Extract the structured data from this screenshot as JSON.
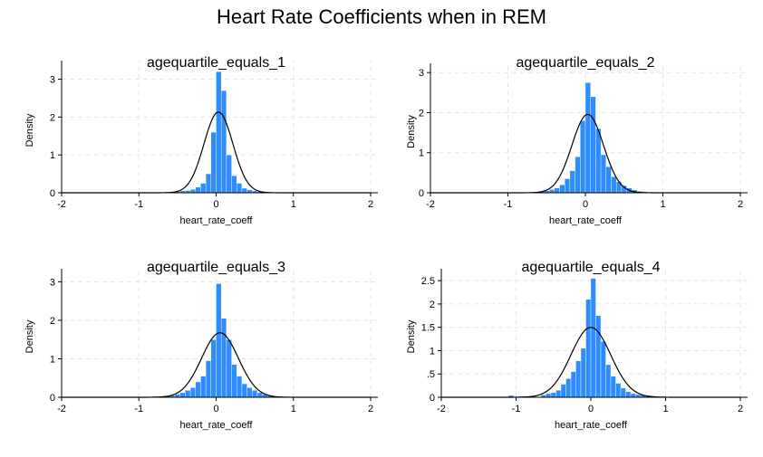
{
  "figure": {
    "title": "Heart Rate Coefficients when in REM"
  },
  "colors": {
    "bar": "#2f8cff",
    "curve": "#000000",
    "grid": "#e6e6e6"
  },
  "chart_data": [
    {
      "type": "bar",
      "title": "agequartile_equals_1",
      "xlabel": "heart_rate_coeff",
      "ylabel": "Density",
      "xlim": [
        -2,
        2
      ],
      "ylim": [
        0,
        3.3
      ],
      "xticks": [
        "-2",
        "-1",
        "0",
        "1",
        "2"
      ],
      "yticks": [
        0,
        1,
        2,
        3
      ],
      "ytick_labels": [
        "0",
        "1",
        "2",
        "3"
      ],
      "grid": true,
      "bin_width": 0.0667,
      "bins": [
        {
          "x": -0.7,
          "y": 0.02
        },
        {
          "x": -0.633,
          "y": 0.02
        },
        {
          "x": -0.567,
          "y": 0.03
        },
        {
          "x": -0.5,
          "y": 0.03
        },
        {
          "x": -0.433,
          "y": 0.05
        },
        {
          "x": -0.367,
          "y": 0.06
        },
        {
          "x": -0.3,
          "y": 0.09
        },
        {
          "x": -0.233,
          "y": 0.15
        },
        {
          "x": -0.167,
          "y": 0.25
        },
        {
          "x": -0.1,
          "y": 0.5
        },
        {
          "x": -0.033,
          "y": 1.6
        },
        {
          "x": 0.033,
          "y": 3.2
        },
        {
          "x": 0.1,
          "y": 2.7
        },
        {
          "x": 0.167,
          "y": 1.0
        },
        {
          "x": 0.233,
          "y": 0.45
        },
        {
          "x": 0.3,
          "y": 0.25
        },
        {
          "x": 0.367,
          "y": 0.12
        },
        {
          "x": 0.433,
          "y": 0.08
        },
        {
          "x": 0.5,
          "y": 0.05
        },
        {
          "x": 0.567,
          "y": 0.03
        },
        {
          "x": 0.633,
          "y": 0.03
        },
        {
          "x": 0.7,
          "y": 0.02
        },
        {
          "x": 0.767,
          "y": 0.01
        }
      ],
      "normal_curve": {
        "mean": 0.03,
        "sd": 0.187,
        "xrange": [
          -2,
          2
        ]
      }
    },
    {
      "type": "bar",
      "title": "agequartile_equals_2",
      "xlabel": "heart_rate_coeff",
      "ylabel": "Density",
      "xlim": [
        -2,
        2
      ],
      "ylim": [
        0,
        3.05
      ],
      "xticks": [
        "-2",
        "-1",
        "0",
        "1",
        "2"
      ],
      "yticks": [
        0,
        1,
        2,
        3
      ],
      "ytick_labels": [
        "0",
        "1",
        "2",
        "3"
      ],
      "grid": true,
      "bin_width": 0.0667,
      "bins": [
        {
          "x": -0.567,
          "y": 0.03
        },
        {
          "x": -0.5,
          "y": 0.05
        },
        {
          "x": -0.433,
          "y": 0.08
        },
        {
          "x": -0.367,
          "y": 0.12
        },
        {
          "x": -0.3,
          "y": 0.2
        },
        {
          "x": -0.233,
          "y": 0.35
        },
        {
          "x": -0.167,
          "y": 0.55
        },
        {
          "x": -0.1,
          "y": 0.9
        },
        {
          "x": -0.033,
          "y": 1.8
        },
        {
          "x": 0.033,
          "y": 2.75
        },
        {
          "x": 0.1,
          "y": 2.4
        },
        {
          "x": 0.167,
          "y": 1.6
        },
        {
          "x": 0.233,
          "y": 0.95
        },
        {
          "x": 0.3,
          "y": 0.65
        },
        {
          "x": 0.367,
          "y": 0.4
        },
        {
          "x": 0.433,
          "y": 0.28
        },
        {
          "x": 0.5,
          "y": 0.18
        },
        {
          "x": 0.567,
          "y": 0.12
        },
        {
          "x": 0.633,
          "y": 0.07
        },
        {
          "x": 0.7,
          "y": 0.04
        },
        {
          "x": 0.767,
          "y": 0.03
        },
        {
          "x": 0.833,
          "y": 0.02
        }
      ],
      "normal_curve": {
        "mean": 0.03,
        "sd": 0.204,
        "xrange": [
          -2,
          2
        ]
      }
    },
    {
      "type": "bar",
      "title": "agequartile_equals_3",
      "xlabel": "heart_rate_coeff",
      "ylabel": "Density",
      "xlim": [
        -2,
        2
      ],
      "ylim": [
        0,
        3.15
      ],
      "xticks": [
        "-2",
        "-1",
        "0",
        "1",
        "2"
      ],
      "yticks": [
        0,
        1,
        2,
        3
      ],
      "ytick_labels": [
        "0",
        "1",
        "2",
        "3"
      ],
      "grid": true,
      "bin_width": 0.0667,
      "bins": [
        {
          "x": -0.633,
          "y": 0.03
        },
        {
          "x": -0.567,
          "y": 0.05
        },
        {
          "x": -0.5,
          "y": 0.08
        },
        {
          "x": -0.433,
          "y": 0.12
        },
        {
          "x": -0.367,
          "y": 0.18
        },
        {
          "x": -0.3,
          "y": 0.25
        },
        {
          "x": -0.233,
          "y": 0.4
        },
        {
          "x": -0.167,
          "y": 0.55
        },
        {
          "x": -0.1,
          "y": 0.95
        },
        {
          "x": -0.033,
          "y": 1.5
        },
        {
          "x": 0.033,
          "y": 2.95
        },
        {
          "x": 0.1,
          "y": 2.05
        },
        {
          "x": 0.167,
          "y": 1.5
        },
        {
          "x": 0.233,
          "y": 0.85
        },
        {
          "x": 0.3,
          "y": 0.55
        },
        {
          "x": 0.367,
          "y": 0.35
        },
        {
          "x": 0.433,
          "y": 0.25
        },
        {
          "x": 0.5,
          "y": 0.18
        },
        {
          "x": 0.567,
          "y": 0.12
        },
        {
          "x": 0.633,
          "y": 0.08
        },
        {
          "x": 0.7,
          "y": 0.05
        },
        {
          "x": 0.767,
          "y": 0.03
        },
        {
          "x": 0.833,
          "y": 0.02
        },
        {
          "x": 0.9,
          "y": 0.02
        },
        {
          "x": 0.967,
          "y": 0.02
        }
      ],
      "normal_curve": {
        "mean": 0.05,
        "sd": 0.238,
        "xrange": [
          -2,
          2
        ]
      }
    },
    {
      "type": "bar",
      "title": "agequartile_equals_4",
      "xlabel": "heart_rate_coeff",
      "ylabel": "Density",
      "xlim": [
        -2,
        2
      ],
      "ylim": [
        0,
        2.6
      ],
      "xticks": [
        "-2",
        "-1",
        "0",
        "1",
        "2"
      ],
      "yticks": [
        0,
        0.5,
        1,
        1.5,
        2,
        2.5
      ],
      "ytick_labels": [
        "0",
        ".5",
        "1",
        "1.5",
        "2",
        "2.5"
      ],
      "grid": true,
      "bin_width": 0.0667,
      "bins": [
        {
          "x": -1.067,
          "y": 0.04
        },
        {
          "x": -0.933,
          "y": 0.02
        },
        {
          "x": -0.767,
          "y": 0.02
        },
        {
          "x": -0.633,
          "y": 0.05
        },
        {
          "x": -0.567,
          "y": 0.08
        },
        {
          "x": -0.5,
          "y": 0.1
        },
        {
          "x": -0.433,
          "y": 0.15
        },
        {
          "x": -0.367,
          "y": 0.28
        },
        {
          "x": -0.3,
          "y": 0.4
        },
        {
          "x": -0.233,
          "y": 0.55
        },
        {
          "x": -0.167,
          "y": 0.78
        },
        {
          "x": -0.1,
          "y": 1.05
        },
        {
          "x": -0.033,
          "y": 2.1
        },
        {
          "x": 0.033,
          "y": 2.55
        },
        {
          "x": 0.1,
          "y": 1.75
        },
        {
          "x": 0.167,
          "y": 1.2
        },
        {
          "x": 0.233,
          "y": 0.7
        },
        {
          "x": 0.3,
          "y": 0.45
        },
        {
          "x": 0.367,
          "y": 0.3
        },
        {
          "x": 0.433,
          "y": 0.2
        },
        {
          "x": 0.5,
          "y": 0.12
        },
        {
          "x": 0.567,
          "y": 0.08
        },
        {
          "x": 0.633,
          "y": 0.06
        },
        {
          "x": 0.7,
          "y": 0.05
        },
        {
          "x": 0.767,
          "y": 0.04
        },
        {
          "x": 0.833,
          "y": 0.03
        },
        {
          "x": 0.9,
          "y": 0.02
        },
        {
          "x": 0.967,
          "y": 0.02
        },
        {
          "x": 1.033,
          "y": 0.01
        }
      ],
      "normal_curve": {
        "mean": 0.0,
        "sd": 0.266,
        "xrange": [
          -2,
          2
        ]
      }
    }
  ]
}
